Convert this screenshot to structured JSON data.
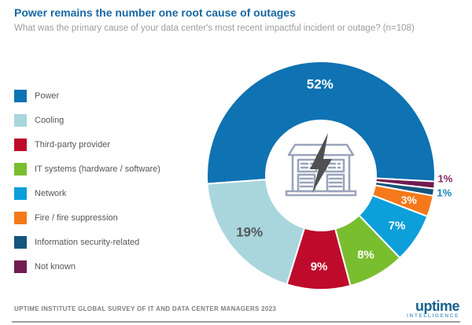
{
  "header": {
    "title": "Power remains the number one root cause of outages",
    "subtitle": "What was the primary cause of your data center's most recent impactful incident or outage? (n=108)"
  },
  "chart_data": {
    "type": "donut",
    "title": "Power remains the number one root cause of outages",
    "question": "What was the primary cause of your data center's most recent impactful incident or outage?",
    "sample_size": "(n=108)",
    "unit": "%",
    "legend_position": "left",
    "start_angle_deg": 93,
    "order": "legend order proceeds counterclockwise from start angle; Power spans the top",
    "slices": [
      {
        "label": "Power",
        "value": 52,
        "color": "#0F72B2",
        "label_text": "52%",
        "label_color": "#FFFFFF",
        "label_placement": "inside"
      },
      {
        "label": "Cooling",
        "value": 19,
        "color": "#A9D6DC",
        "label_text": "19%",
        "label_color": "#54565A",
        "label_placement": "inside"
      },
      {
        "label": "Third-party provider",
        "value": 9,
        "color": "#BE0B2C",
        "label_text": "9%",
        "label_color": "#FFFFFF",
        "label_placement": "inside"
      },
      {
        "label": "IT systems (hardware / software)",
        "value": 8,
        "color": "#79BE2F",
        "label_text": "8%",
        "label_color": "#FFFFFF",
        "label_placement": "inside"
      },
      {
        "label": "Network",
        "value": 7,
        "color": "#0C9FDA",
        "label_text": "7%",
        "label_color": "#FFFFFF",
        "label_placement": "inside"
      },
      {
        "label": "Fire / fire suppression",
        "value": 3,
        "color": "#F5791B",
        "label_text": "3%",
        "label_color": "#FFFFFF",
        "label_placement": "inside"
      },
      {
        "label": "Information security-related",
        "value": 1,
        "color": "#14557B",
        "label_text": "1%",
        "label_color": "#1787B5",
        "label_placement": "outside"
      },
      {
        "label": "Not known",
        "value": 1,
        "color": "#721B50",
        "label_text": "1%",
        "label_color": "#86275C",
        "label_placement": "outside"
      }
    ],
    "center_icon": "data-center-lightning-icon",
    "center_icon_colors": {
      "building": "#9AA4BC",
      "bolt": "#4F5052"
    }
  },
  "footer": {
    "source": "UPTIME INSTITUTE GLOBAL SURVEY OF IT AND DATA CENTER MANAGERS 2023",
    "logo_text": "uptime",
    "logo_subtext": "INTELLIGENCE"
  }
}
